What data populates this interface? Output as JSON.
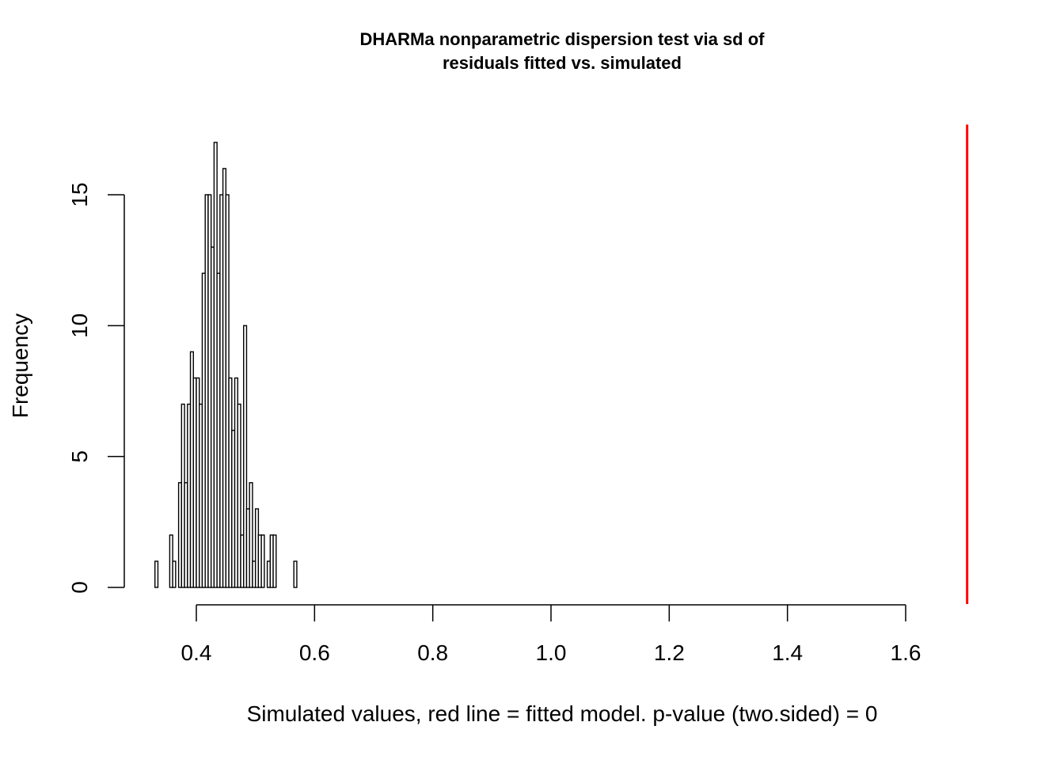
{
  "chart_data": {
    "type": "bar",
    "subtype": "histogram",
    "title": "DHARMa nonparametric dispersion test via sd of\nresiduals fitted vs. simulated",
    "title_lines": [
      "DHARMa nonparametric dispersion test via sd of",
      "residuals fitted vs. simulated"
    ],
    "xlabel": "Simulated values, red line = fitted model. p-value (two.sided) = 0",
    "ylabel": "Frequency",
    "x_ticks": [
      0.4,
      0.6,
      0.8,
      1.0,
      1.2,
      1.4,
      1.6
    ],
    "x_tick_labels": [
      "0.4",
      "0.6",
      "0.8",
      "1.0",
      "1.2",
      "1.4",
      "1.6"
    ],
    "y_ticks": [
      0,
      5,
      10,
      15
    ],
    "y_tick_labels": [
      "0",
      "5",
      "10",
      "15"
    ],
    "xlim": [
      0.33,
      1.705
    ],
    "ylim": [
      0,
      17
    ],
    "grid": false,
    "bin_start": 0.33,
    "bin_width": 0.005,
    "counts": [
      1,
      0,
      0,
      0,
      0,
      2,
      1,
      0,
      4,
      7,
      4,
      7,
      9,
      8,
      8,
      7,
      12,
      15,
      15,
      13,
      17,
      12,
      15,
      16,
      15,
      8,
      6,
      8,
      7,
      2,
      10,
      3,
      4,
      1,
      3,
      2,
      2,
      0,
      1,
      2,
      2,
      0,
      0,
      0,
      0,
      0,
      0,
      1
    ],
    "reference_line": {
      "x": 1.704,
      "color": "#ff0000",
      "label": "fitted model"
    },
    "bar_fill": "#ffffff",
    "bar_stroke": "#000000"
  }
}
